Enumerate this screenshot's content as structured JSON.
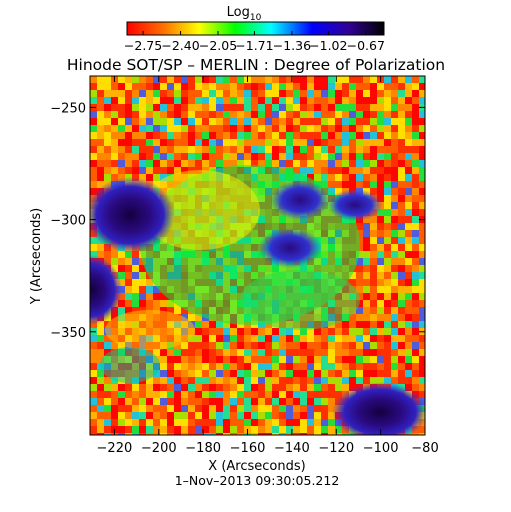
{
  "chart_data": {
    "type": "heatmap",
    "title": "Hinode SOT/SP – MERLIN : Degree of Polarization",
    "xlabel": "X (Arcseconds)",
    "ylabel": "Y (Arcseconds)",
    "date": "1–Nov–2013 09:30:05.212",
    "xlim": [
      -231,
      -80
    ],
    "ylim": [
      -396,
      -236
    ],
    "x_ticks": [
      -220,
      -200,
      -180,
      -160,
      -140,
      -120,
      -100,
      -80
    ],
    "x_tick_labels": [
      "−220",
      "−200",
      "−180",
      "−160",
      "−140",
      "−120",
      "−100",
      "−80"
    ],
    "y_ticks": [
      -250,
      -300,
      -350
    ],
    "y_tick_labels": [
      "−250",
      "−300",
      "−350"
    ],
    "colorbar": {
      "title": "Log",
      "title_subscript": "10",
      "range": [
        -2.9,
        -0.5
      ],
      "ticks": [
        -2.75,
        -2.4,
        -2.05,
        -1.71,
        -1.36,
        -1.02,
        -0.67
      ],
      "tick_labels": [
        "−2.75",
        "−2.40",
        "−2.05",
        "−1.71",
        "−1.36",
        "−1.02",
        "−0.67"
      ],
      "colors": [
        "#ff0000",
        "#ff8800",
        "#ffff00",
        "#00ff00",
        "#00ffff",
        "#0000ff",
        "#3300aa",
        "#000000"
      ]
    },
    "colormap": "rainbow",
    "grid": false
  }
}
